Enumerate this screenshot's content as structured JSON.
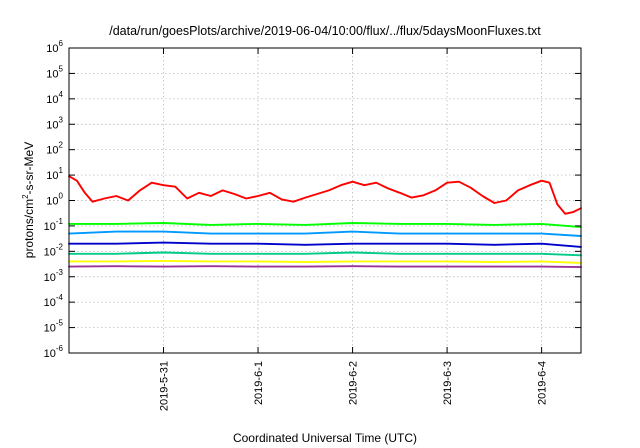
{
  "chart_data": {
    "type": "line",
    "title": "/data/run/goesPlots/archive/2019-06-04/10:00/flux/../flux/5daysMoonFluxes.txt",
    "xlabel": "Coordinated Universal Time (UTC)",
    "ylabel": "protons/cm2-s-sr-MeV",
    "ylabel_parts": {
      "pre": "protons/cm",
      "sup": "2",
      "post": "-s-sr-MeV"
    },
    "yscale": "log",
    "ylim": [
      1e-06,
      1000000.0
    ],
    "xlim": [
      "2019-05-30T00:00",
      "2019-06-04T10:00"
    ],
    "y_ticks": [
      {
        "base": "10",
        "exp": "-6",
        "value": 1e-06
      },
      {
        "base": "10",
        "exp": "-5",
        "value": 1e-05
      },
      {
        "base": "10",
        "exp": "-4",
        "value": 0.0001
      },
      {
        "base": "10",
        "exp": "-3",
        "value": 0.001
      },
      {
        "base": "10",
        "exp": "-2",
        "value": 0.01
      },
      {
        "base": "10",
        "exp": "-1",
        "value": 0.1
      },
      {
        "base": "10",
        "exp": "0",
        "value": 1
      },
      {
        "base": "10",
        "exp": "1",
        "value": 10
      },
      {
        "base": "10",
        "exp": "2",
        "value": 100
      },
      {
        "base": "10",
        "exp": "3",
        "value": 1000
      },
      {
        "base": "10",
        "exp": "4",
        "value": 10000
      },
      {
        "base": "10",
        "exp": "5",
        "value": 100000
      },
      {
        "base": "10",
        "exp": "6",
        "value": 1000000
      }
    ],
    "x_ticks": [
      {
        "label": "2019-5-31",
        "value": "2019-05-31T00:00"
      },
      {
        "label": "2019-6-1",
        "value": "2019-06-01T00:00"
      },
      {
        "label": "2019-6-2",
        "value": "2019-06-02T00:00"
      },
      {
        "label": "2019-6-3",
        "value": "2019-06-03T00:00"
      },
      {
        "label": "2019-6-4",
        "value": "2019-06-04T00:00"
      }
    ],
    "grid": true,
    "legend": "none",
    "series": [
      {
        "color": "#ff0000",
        "x": [
          "2019-05-30T00:00",
          "2019-05-30T02:00",
          "2019-05-30T04:00",
          "2019-05-30T06:00",
          "2019-05-30T09:00",
          "2019-05-30T12:00",
          "2019-05-30T15:00",
          "2019-05-30T18:00",
          "2019-05-30T21:00",
          "2019-05-31T00:00",
          "2019-05-31T03:00",
          "2019-05-31T06:00",
          "2019-05-31T09:00",
          "2019-05-31T12:00",
          "2019-05-31T15:00",
          "2019-05-31T18:00",
          "2019-05-31T21:00",
          "2019-06-01T00:00",
          "2019-06-01T03:00",
          "2019-06-01T06:00",
          "2019-06-01T09:00",
          "2019-06-01T12:00",
          "2019-06-01T15:00",
          "2019-06-01T18:00",
          "2019-06-01T21:00",
          "2019-06-02T00:00",
          "2019-06-02T03:00",
          "2019-06-02T06:00",
          "2019-06-02T09:00",
          "2019-06-02T12:00",
          "2019-06-02T15:00",
          "2019-06-02T18:00",
          "2019-06-02T21:00",
          "2019-06-03T00:00",
          "2019-06-03T03:00",
          "2019-06-03T06:00",
          "2019-06-03T09:00",
          "2019-06-03T12:00",
          "2019-06-03T15:00",
          "2019-06-03T18:00",
          "2019-06-03T21:00",
          "2019-06-04T00:00",
          "2019-06-04T02:00",
          "2019-06-04T04:00",
          "2019-06-04T06:00",
          "2019-06-04T08:00",
          "2019-06-04T10:00"
        ],
        "values": [
          9,
          6,
          2,
          0.9,
          1.2,
          1.5,
          1.0,
          2.5,
          5,
          4,
          3.5,
          1.2,
          2.0,
          1.5,
          2.5,
          1.8,
          1.2,
          1.5,
          2.0,
          1.1,
          0.9,
          1.3,
          1.8,
          2.5,
          4,
          5.5,
          4,
          5,
          3,
          2,
          1.3,
          1.6,
          2.5,
          5,
          5.5,
          3.2,
          1.5,
          0.8,
          1.0,
          2.5,
          4,
          6,
          5,
          0.7,
          0.3,
          0.35,
          0.5
        ]
      },
      {
        "color": "#00ff00",
        "x": [
          "2019-05-30T00:00",
          "2019-05-30T12:00",
          "2019-05-31T00:00",
          "2019-05-31T12:00",
          "2019-06-01T00:00",
          "2019-06-01T12:00",
          "2019-06-02T00:00",
          "2019-06-02T12:00",
          "2019-06-03T00:00",
          "2019-06-03T12:00",
          "2019-06-04T00:00",
          "2019-06-04T10:00"
        ],
        "values": [
          0.12,
          0.12,
          0.13,
          0.11,
          0.12,
          0.11,
          0.13,
          0.12,
          0.12,
          0.11,
          0.12,
          0.09
        ]
      },
      {
        "color": "#0099ff",
        "x": [
          "2019-05-30T00:00",
          "2019-05-30T12:00",
          "2019-05-31T00:00",
          "2019-05-31T12:00",
          "2019-06-01T00:00",
          "2019-06-01T12:00",
          "2019-06-02T00:00",
          "2019-06-02T12:00",
          "2019-06-03T00:00",
          "2019-06-03T12:00",
          "2019-06-04T00:00",
          "2019-06-04T10:00"
        ],
        "values": [
          0.05,
          0.06,
          0.06,
          0.05,
          0.05,
          0.05,
          0.06,
          0.05,
          0.05,
          0.05,
          0.05,
          0.04
        ]
      },
      {
        "color": "#0000cc",
        "x": [
          "2019-05-30T00:00",
          "2019-05-30T12:00",
          "2019-05-31T00:00",
          "2019-05-31T12:00",
          "2019-06-01T00:00",
          "2019-06-01T12:00",
          "2019-06-02T00:00",
          "2019-06-02T12:00",
          "2019-06-03T00:00",
          "2019-06-03T12:00",
          "2019-06-04T00:00",
          "2019-06-04T10:00"
        ],
        "values": [
          0.02,
          0.02,
          0.022,
          0.02,
          0.02,
          0.018,
          0.02,
          0.02,
          0.02,
          0.018,
          0.02,
          0.015
        ]
      },
      {
        "color": "#00cc88",
        "x": [
          "2019-05-30T00:00",
          "2019-05-30T12:00",
          "2019-05-31T00:00",
          "2019-05-31T12:00",
          "2019-06-01T00:00",
          "2019-06-01T12:00",
          "2019-06-02T00:00",
          "2019-06-02T12:00",
          "2019-06-03T00:00",
          "2019-06-03T12:00",
          "2019-06-04T00:00",
          "2019-06-04T10:00"
        ],
        "values": [
          0.008,
          0.008,
          0.009,
          0.008,
          0.008,
          0.008,
          0.009,
          0.008,
          0.008,
          0.008,
          0.008,
          0.007
        ]
      },
      {
        "color": "#ffff00",
        "x": [
          "2019-05-30T00:00",
          "2019-05-30T12:00",
          "2019-05-31T00:00",
          "2019-05-31T12:00",
          "2019-06-01T00:00",
          "2019-06-01T12:00",
          "2019-06-02T00:00",
          "2019-06-02T12:00",
          "2019-06-03T00:00",
          "2019-06-03T12:00",
          "2019-06-04T00:00",
          "2019-06-04T10:00"
        ],
        "values": [
          0.004,
          0.004,
          0.0042,
          0.004,
          0.004,
          0.0038,
          0.004,
          0.004,
          0.004,
          0.0038,
          0.004,
          0.0035
        ]
      },
      {
        "color": "#993399",
        "x": [
          "2019-05-30T00:00",
          "2019-05-30T12:00",
          "2019-05-31T00:00",
          "2019-05-31T12:00",
          "2019-06-01T00:00",
          "2019-06-01T12:00",
          "2019-06-02T00:00",
          "2019-06-02T12:00",
          "2019-06-03T00:00",
          "2019-06-03T12:00",
          "2019-06-04T00:00",
          "2019-06-04T10:00"
        ],
        "values": [
          0.0025,
          0.0026,
          0.0025,
          0.0026,
          0.0025,
          0.0025,
          0.0026,
          0.0025,
          0.0025,
          0.0025,
          0.0025,
          0.0024
        ]
      }
    ]
  }
}
